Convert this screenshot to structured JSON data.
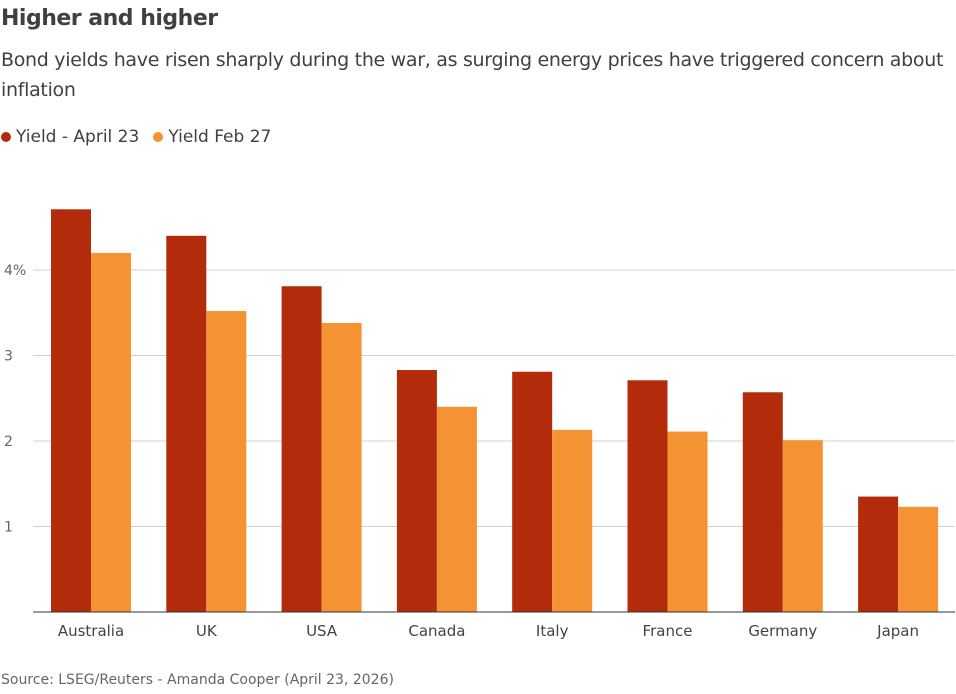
{
  "chart_data": {
    "type": "bar",
    "title": "Higher and higher",
    "subtitle": "Bond yields have risen sharply during the war, as surging energy prices have triggered concern about inflation",
    "categories": [
      "Australia",
      "UK",
      "USA",
      "Canada",
      "Italy",
      "France",
      "Germany",
      "Japan"
    ],
    "series": [
      {
        "name": "Yield - April 23",
        "color": "#b22b0b",
        "values": [
          4.71,
          4.4,
          3.81,
          2.83,
          2.81,
          2.71,
          2.57,
          1.35
        ]
      },
      {
        "name": "Yield Feb 27",
        "color": "#f59233",
        "values": [
          4.2,
          3.52,
          3.38,
          2.4,
          2.13,
          2.11,
          2.01,
          1.23
        ]
      }
    ],
    "yticks": [
      {
        "value": 1,
        "label": "1"
      },
      {
        "value": 2,
        "label": "2"
      },
      {
        "value": 3,
        "label": "3"
      },
      {
        "value": 4,
        "label": "4%"
      }
    ],
    "ylim": [
      0,
      4.9
    ],
    "grid": true,
    "legend_position": "top-left",
    "xlabel": "",
    "ylabel": "",
    "source": "Source: LSEG/Reuters - Amanda Cooper (April 23, 2026)"
  }
}
